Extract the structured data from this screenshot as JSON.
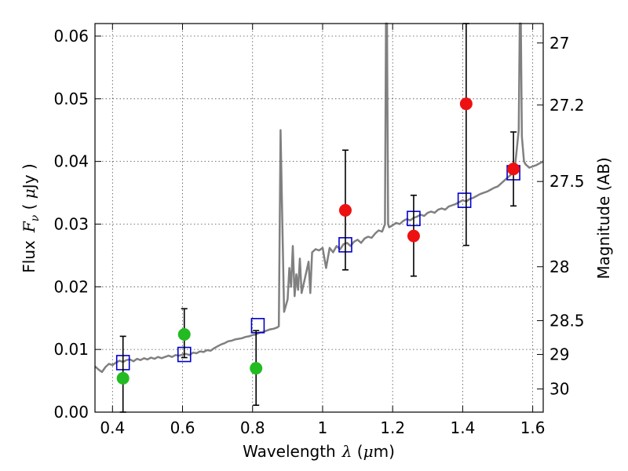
{
  "chart_data": {
    "type": "scatter",
    "xlabel": {
      "prefix": "Wavelength",
      "symbol": "λ",
      "units_open": " (",
      "units_mu": "μ",
      "units_rest": "m)"
    },
    "ylabel": {
      "prefix": "Flux",
      "symbol": "F",
      "subscript": "ν",
      "units_open": " ( ",
      "units_mu": "μ",
      "units_rest": "Jy )"
    },
    "y2label": "Magnitude (AB)",
    "xlim": [
      0.35,
      1.63
    ],
    "ylim": [
      0.0,
      0.062
    ],
    "grid": true,
    "x_ticks": [
      {
        "value": 0.4,
        "label": "0.4"
      },
      {
        "value": 0.6,
        "label": "0.6"
      },
      {
        "value": 0.8,
        "label": "0.8"
      },
      {
        "value": 1.0,
        "label": "1"
      },
      {
        "value": 1.2,
        "label": "1.2"
      },
      {
        "value": 1.4,
        "label": "1.4"
      },
      {
        "value": 1.6,
        "label": "1.6"
      }
    ],
    "y_ticks": [
      {
        "value": 0.0,
        "label": "0.00"
      },
      {
        "value": 0.01,
        "label": "0.01"
      },
      {
        "value": 0.02,
        "label": "0.02"
      },
      {
        "value": 0.03,
        "label": "0.03"
      },
      {
        "value": 0.04,
        "label": "0.04"
      },
      {
        "value": 0.05,
        "label": "0.05"
      },
      {
        "value": 0.06,
        "label": "0.06"
      }
    ],
    "y2_ticks": [
      {
        "flux": 0.0589,
        "label": "27"
      },
      {
        "flux": 0.049,
        "label": "27.2"
      },
      {
        "flux": 0.0368,
        "label": "27.5"
      },
      {
        "flux": 0.0232,
        "label": "28"
      },
      {
        "flux": 0.0146,
        "label": "28.5"
      },
      {
        "flux": 0.0092,
        "label": "29"
      },
      {
        "flux": 0.0037,
        "label": "30"
      }
    ],
    "series": [
      {
        "kind": "line",
        "color": "#808080",
        "points": [
          [
            0.35,
            0.0073
          ],
          [
            0.36,
            0.0068
          ],
          [
            0.37,
            0.0064
          ],
          [
            0.38,
            0.0072
          ],
          [
            0.39,
            0.0077
          ],
          [
            0.4,
            0.0075
          ],
          [
            0.41,
            0.0079
          ],
          [
            0.42,
            0.0082
          ],
          [
            0.43,
            0.008
          ],
          [
            0.44,
            0.0083
          ],
          [
            0.45,
            0.0084
          ],
          [
            0.46,
            0.0081
          ],
          [
            0.47,
            0.0085
          ],
          [
            0.48,
            0.0083
          ],
          [
            0.49,
            0.0086
          ],
          [
            0.5,
            0.0084
          ],
          [
            0.51,
            0.0087
          ],
          [
            0.52,
            0.0085
          ],
          [
            0.53,
            0.0088
          ],
          [
            0.54,
            0.0086
          ],
          [
            0.55,
            0.0088
          ],
          [
            0.56,
            0.009
          ],
          [
            0.57,
            0.0088
          ],
          [
            0.58,
            0.0091
          ],
          [
            0.59,
            0.009
          ],
          [
            0.6,
            0.0092
          ],
          [
            0.61,
            0.0093
          ],
          [
            0.62,
            0.0091
          ],
          [
            0.63,
            0.0095
          ],
          [
            0.64,
            0.0094
          ],
          [
            0.65,
            0.0097
          ],
          [
            0.66,
            0.0096
          ],
          [
            0.67,
            0.0099
          ],
          [
            0.68,
            0.0098
          ],
          [
            0.69,
            0.0102
          ],
          [
            0.7,
            0.0105
          ],
          [
            0.71,
            0.0108
          ],
          [
            0.72,
            0.011
          ],
          [
            0.73,
            0.0113
          ],
          [
            0.74,
            0.0114
          ],
          [
            0.75,
            0.0116
          ],
          [
            0.76,
            0.0117
          ],
          [
            0.77,
            0.0118
          ],
          [
            0.78,
            0.012
          ],
          [
            0.79,
            0.0121
          ],
          [
            0.8,
            0.0123
          ],
          [
            0.81,
            0.0124
          ],
          [
            0.82,
            0.0127
          ],
          [
            0.83,
            0.0128
          ],
          [
            0.84,
            0.013
          ],
          [
            0.85,
            0.0132
          ],
          [
            0.86,
            0.0133
          ],
          [
            0.87,
            0.0135
          ],
          [
            0.875,
            0.0137
          ],
          [
            0.88,
            0.045
          ],
          [
            0.885,
            0.03
          ],
          [
            0.89,
            0.016
          ],
          [
            0.9,
            0.018
          ],
          [
            0.905,
            0.023
          ],
          [
            0.91,
            0.02
          ],
          [
            0.915,
            0.0265
          ],
          [
            0.92,
            0.0185
          ],
          [
            0.925,
            0.022
          ],
          [
            0.93,
            0.0195
          ],
          [
            0.935,
            0.0245
          ],
          [
            0.94,
            0.019
          ],
          [
            0.95,
            0.0215
          ],
          [
            0.96,
            0.024
          ],
          [
            0.965,
            0.019
          ],
          [
            0.97,
            0.0255
          ],
          [
            0.98,
            0.026
          ],
          [
            0.99,
            0.0258
          ],
          [
            1.0,
            0.0262
          ],
          [
            1.01,
            0.023
          ],
          [
            1.02,
            0.0262
          ],
          [
            1.03,
            0.0255
          ],
          [
            1.04,
            0.0265
          ],
          [
            1.05,
            0.026
          ],
          [
            1.06,
            0.0268
          ],
          [
            1.07,
            0.027
          ],
          [
            1.08,
            0.0265
          ],
          [
            1.09,
            0.0272
          ],
          [
            1.1,
            0.0275
          ],
          [
            1.11,
            0.027
          ],
          [
            1.12,
            0.0277
          ],
          [
            1.13,
            0.028
          ],
          [
            1.14,
            0.0278
          ],
          [
            1.15,
            0.0285
          ],
          [
            1.16,
            0.029
          ],
          [
            1.17,
            0.0288
          ],
          [
            1.178,
            0.03
          ],
          [
            1.181,
            0.062
          ],
          [
            1.184,
            0.062
          ],
          [
            1.187,
            0.03
          ],
          [
            1.19,
            0.0295
          ],
          [
            1.2,
            0.0298
          ],
          [
            1.21,
            0.0302
          ],
          [
            1.22,
            0.03
          ],
          [
            1.23,
            0.0305
          ],
          [
            1.24,
            0.0308
          ],
          [
            1.25,
            0.0306
          ],
          [
            1.26,
            0.031
          ],
          [
            1.27,
            0.0312
          ],
          [
            1.28,
            0.0315
          ],
          [
            1.29,
            0.0313
          ],
          [
            1.3,
            0.0318
          ],
          [
            1.31,
            0.032
          ],
          [
            1.32,
            0.0318
          ],
          [
            1.33,
            0.0323
          ],
          [
            1.34,
            0.0325
          ],
          [
            1.35,
            0.0323
          ],
          [
            1.36,
            0.0328
          ],
          [
            1.37,
            0.033
          ],
          [
            1.38,
            0.0332
          ],
          [
            1.39,
            0.0335
          ],
          [
            1.4,
            0.0338
          ],
          [
            1.41,
            0.0336
          ],
          [
            1.42,
            0.034
          ],
          [
            1.43,
            0.0342
          ],
          [
            1.44,
            0.0345
          ],
          [
            1.45,
            0.0348
          ],
          [
            1.46,
            0.035
          ],
          [
            1.47,
            0.0352
          ],
          [
            1.48,
            0.0355
          ],
          [
            1.49,
            0.0358
          ],
          [
            1.5,
            0.036
          ],
          [
            1.51,
            0.0365
          ],
          [
            1.52,
            0.037
          ],
          [
            1.53,
            0.0375
          ],
          [
            1.54,
            0.038
          ],
          [
            1.545,
            0.0385
          ],
          [
            1.55,
            0.0395
          ],
          [
            1.56,
            0.045
          ],
          [
            1.563,
            0.062
          ],
          [
            1.566,
            0.062
          ],
          [
            1.569,
            0.044
          ],
          [
            1.575,
            0.04
          ],
          [
            1.58,
            0.0395
          ],
          [
            1.59,
            0.039
          ],
          [
            1.6,
            0.0392
          ],
          [
            1.61,
            0.0394
          ],
          [
            1.62,
            0.0397
          ],
          [
            1.63,
            0.04
          ]
        ]
      },
      {
        "kind": "marker",
        "marker": "open-square",
        "color": "#0000cc",
        "points": [
          [
            0.43,
            0.0079
          ],
          [
            0.605,
            0.0092
          ],
          [
            0.815,
            0.0138
          ],
          [
            1.065,
            0.0267
          ],
          [
            1.26,
            0.0309
          ],
          [
            1.405,
            0.0338
          ],
          [
            1.545,
            0.0382
          ]
        ]
      },
      {
        "kind": "marker",
        "marker": "filled-circle",
        "color": "#22bb22",
        "points": [
          [
            0.43,
            0.0054
          ],
          [
            0.605,
            0.0124
          ],
          [
            0.81,
            0.007
          ]
        ]
      },
      {
        "kind": "marker",
        "marker": "filled-circle",
        "color": "#ee1111",
        "points": [
          [
            1.065,
            0.0322
          ],
          [
            1.26,
            0.0281
          ],
          [
            1.41,
            0.0492
          ],
          [
            1.545,
            0.0388
          ]
        ]
      },
      {
        "kind": "errorbar",
        "color": "#000000",
        "points": [
          {
            "x": 0.43,
            "lo": 0.0,
            "hi": 0.0121
          },
          {
            "x": 0.605,
            "lo": 0.0087,
            "hi": 0.0165
          },
          {
            "x": 0.81,
            "lo": 0.0011,
            "hi": 0.013
          },
          {
            "x": 1.065,
            "lo": 0.0227,
            "hi": 0.0418
          },
          {
            "x": 1.26,
            "lo": 0.0217,
            "hi": 0.0346
          },
          {
            "x": 1.41,
            "lo": 0.0266,
            "hi": 0.062
          },
          {
            "x": 1.545,
            "lo": 0.0329,
            "hi": 0.0447
          }
        ]
      }
    ]
  }
}
